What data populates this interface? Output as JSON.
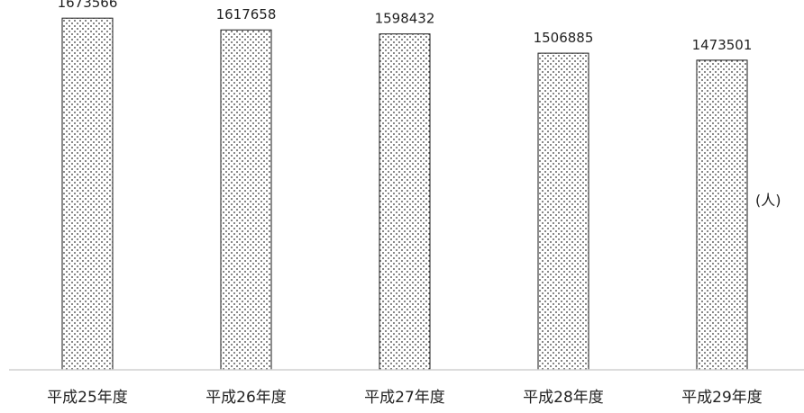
{
  "chart_data": {
    "type": "bar",
    "categories": [
      "平成25年度",
      "平成26年度",
      "平成27年度",
      "平成28年度",
      "平成29年度"
    ],
    "values": [
      1673566,
      1617658,
      1598432,
      1506885,
      1473501
    ],
    "data_labels": [
      "1673566",
      "1617658",
      "1598432",
      "1506885",
      "1473501"
    ],
    "unit": "(人)",
    "title": "",
    "xlabel": "",
    "ylabel": "",
    "ylim": [
      0,
      1760000
    ],
    "grid": false,
    "legend": "none",
    "bar_fill": "dotted",
    "colors": {
      "bar_stroke": "#1a1a1a",
      "dot": "#333333",
      "axis": "#d0d0d0",
      "text": "#222222"
    }
  }
}
